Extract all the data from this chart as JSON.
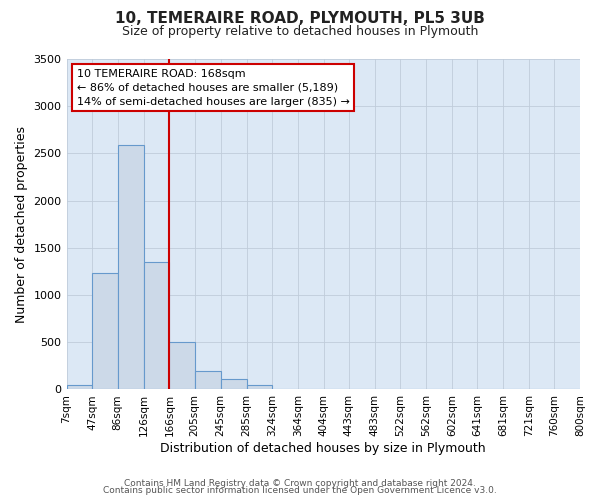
{
  "title": "10, TEMERAIRE ROAD, PLYMOUTH, PL5 3UB",
  "subtitle": "Size of property relative to detached houses in Plymouth",
  "xlabel": "Distribution of detached houses by size in Plymouth",
  "ylabel": "Number of detached properties",
  "footer_line1": "Contains HM Land Registry data © Crown copyright and database right 2024.",
  "footer_line2": "Contains public sector information licensed under the Open Government Licence v3.0.",
  "bin_edges": [
    7,
    47,
    86,
    126,
    166,
    205,
    245,
    285,
    324,
    364,
    404,
    443,
    483,
    522,
    562,
    602,
    641,
    681,
    721,
    760,
    800
  ],
  "bin_labels": [
    "7sqm",
    "47sqm",
    "86sqm",
    "126sqm",
    "166sqm",
    "205sqm",
    "245sqm",
    "285sqm",
    "324sqm",
    "364sqm",
    "404sqm",
    "443sqm",
    "483sqm",
    "522sqm",
    "562sqm",
    "602sqm",
    "641sqm",
    "681sqm",
    "721sqm",
    "760sqm",
    "800sqm"
  ],
  "bar_heights": [
    50,
    1230,
    2590,
    1350,
    500,
    200,
    110,
    45,
    10,
    2,
    0,
    0,
    0,
    0,
    0,
    0,
    0,
    0,
    0,
    0
  ],
  "bar_color": "#ccd9e8",
  "bar_edge_color": "#6699cc",
  "vline_x": 166,
  "vline_color": "#cc0000",
  "annotation_line1": "10 TEMERAIRE ROAD: 168sqm",
  "annotation_line2": "← 86% of detached houses are smaller (5,189)",
  "annotation_line3": "14% of semi-detached houses are larger (835) →",
  "annotation_box_color": "#ffffff",
  "annotation_box_edge": "#cc0000",
  "ylim": [
    0,
    3500
  ],
  "yticks": [
    0,
    500,
    1000,
    1500,
    2000,
    2500,
    3000,
    3500
  ],
  "bg_color": "#ffffff",
  "plot_bg_color": "#dce8f5",
  "grid_color": "#c0ccda",
  "title_fontsize": 11,
  "subtitle_fontsize": 9,
  "tick_fontsize": 7.5,
  "ytick_fontsize": 8,
  "xlabel_fontsize": 9,
  "ylabel_fontsize": 9,
  "footer_fontsize": 6.5
}
